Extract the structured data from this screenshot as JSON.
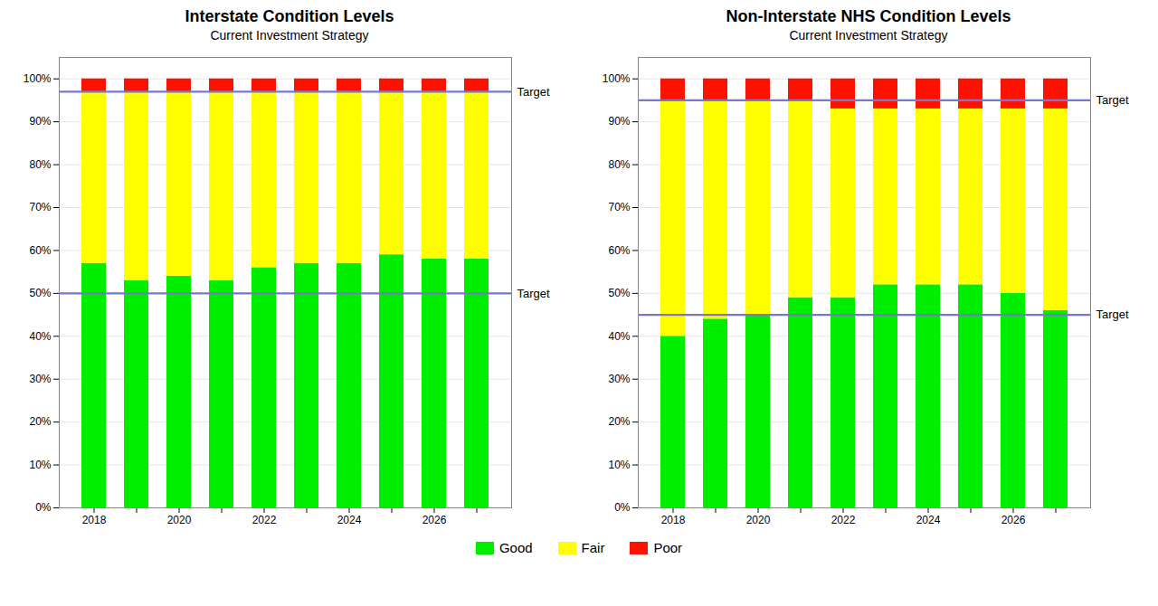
{
  "chart_data": [
    {
      "type": "bar",
      "stacked": true,
      "title": "Interstate Condition Levels",
      "subtitle": "Current Investment Strategy",
      "categories": [
        "2018",
        null,
        "2020",
        null,
        "2022",
        null,
        "2024",
        null,
        "2026",
        null
      ],
      "series": [
        {
          "name": "Good",
          "color": "#00ee00",
          "values": [
            57,
            53,
            54,
            53,
            56,
            57,
            57,
            59,
            58,
            58
          ]
        },
        {
          "name": "Fair",
          "color": "#ffff00",
          "values": [
            40,
            44,
            43,
            44,
            41,
            40,
            40,
            38,
            39,
            39
          ]
        },
        {
          "name": "Poor",
          "color": "#ff1100",
          "values": [
            3,
            3,
            3,
            3,
            3,
            3,
            3,
            3,
            3,
            3
          ]
        }
      ],
      "annotations": [
        {
          "text": "Target",
          "y": 50,
          "color": "#7777cc"
        },
        {
          "text": "Target",
          "y": 97,
          "color": "#7777cc"
        }
      ],
      "ylim": [
        0,
        105
      ],
      "yticks": [
        {
          "value": 0,
          "label": "0%"
        },
        {
          "value": 10,
          "label": "10%"
        },
        {
          "value": 20,
          "label": "20%"
        },
        {
          "value": 30,
          "label": "30%"
        },
        {
          "value": 40,
          "label": "40%"
        },
        {
          "value": 50,
          "label": "50%"
        },
        {
          "value": 60,
          "label": "60%"
        },
        {
          "value": 70,
          "label": "70%"
        },
        {
          "value": 80,
          "label": "80%"
        },
        {
          "value": 90,
          "label": "90%"
        },
        {
          "value": 100,
          "label": "100%"
        }
      ],
      "grid": true,
      "legend": "bottom"
    },
    {
      "type": "bar",
      "stacked": true,
      "title": "Non-Interstate NHS Condition Levels",
      "subtitle": "Current Investment Strategy",
      "categories": [
        "2018",
        null,
        "2020",
        null,
        "2022",
        null,
        "2024",
        null,
        "2026",
        null
      ],
      "series": [
        {
          "name": "Good",
          "color": "#00ee00",
          "values": [
            40,
            44,
            45,
            49,
            49,
            52,
            52,
            52,
            50,
            46
          ]
        },
        {
          "name": "Fair",
          "color": "#ffff00",
          "values": [
            55,
            51,
            50,
            46,
            44,
            41,
            41,
            41,
            43,
            47
          ]
        },
        {
          "name": "Poor",
          "color": "#ff1100",
          "values": [
            5,
            5,
            5,
            5,
            7,
            7,
            7,
            7,
            7,
            7
          ]
        }
      ],
      "annotations": [
        {
          "text": "Target",
          "y": 45,
          "color": "#7777cc"
        },
        {
          "text": "Target",
          "y": 95,
          "color": "#7777cc"
        }
      ],
      "ylim": [
        0,
        105
      ],
      "yticks": [
        {
          "value": 0,
          "label": "0%"
        },
        {
          "value": 10,
          "label": "10%"
        },
        {
          "value": 20,
          "label": "20%"
        },
        {
          "value": 30,
          "label": "30%"
        },
        {
          "value": 40,
          "label": "40%"
        },
        {
          "value": 50,
          "label": "50%"
        },
        {
          "value": 60,
          "label": "60%"
        },
        {
          "value": 70,
          "label": "70%"
        },
        {
          "value": 80,
          "label": "80%"
        },
        {
          "value": 90,
          "label": "90%"
        },
        {
          "value": 100,
          "label": "100%"
        }
      ],
      "grid": true,
      "legend": "bottom"
    }
  ]
}
